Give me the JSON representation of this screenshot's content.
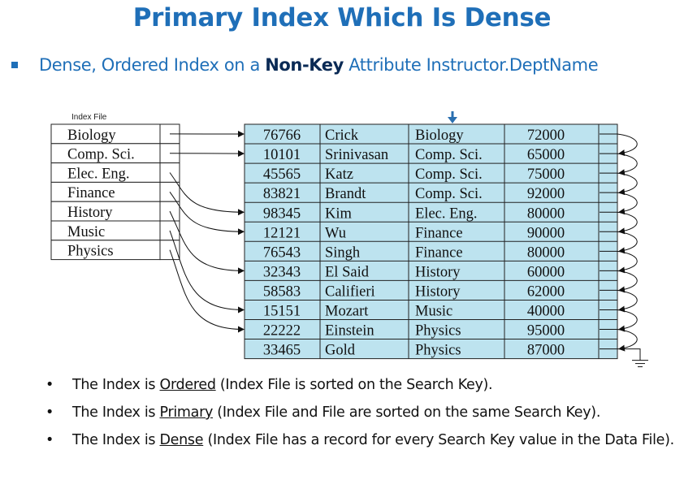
{
  "title": "Primary Index Which Is Dense",
  "subtitle": {
    "prefix": "Dense, Ordered Index on a ",
    "emphasis": "Non-Key",
    "suffix": " Attribute Instructor.DeptName"
  },
  "index_file": {
    "caption": "Index File",
    "entries": [
      "Biology",
      "Comp. Sci.",
      "Elec. Eng.",
      "Finance",
      "History",
      "Music",
      "Physics"
    ]
  },
  "data_file": {
    "records": [
      {
        "id": "76766",
        "name": "Crick",
        "dept": "Biology",
        "salary": "72000"
      },
      {
        "id": "10101",
        "name": "Srinivasan",
        "dept": "Comp. Sci.",
        "salary": "65000"
      },
      {
        "id": "45565",
        "name": "Katz",
        "dept": "Comp. Sci.",
        "salary": "75000"
      },
      {
        "id": "83821",
        "name": "Brandt",
        "dept": "Comp. Sci.",
        "salary": "92000"
      },
      {
        "id": "98345",
        "name": "Kim",
        "dept": "Elec. Eng.",
        "salary": "80000"
      },
      {
        "id": "12121",
        "name": "Wu",
        "dept": "Finance",
        "salary": "90000"
      },
      {
        "id": "76543",
        "name": "Singh",
        "dept": "Finance",
        "salary": "80000"
      },
      {
        "id": "32343",
        "name": "El Said",
        "dept": "History",
        "salary": "60000"
      },
      {
        "id": "58583",
        "name": "Califieri",
        "dept": "History",
        "salary": "62000"
      },
      {
        "id": "15151",
        "name": "Mozart",
        "dept": "Music",
        "salary": "40000"
      },
      {
        "id": "22222",
        "name": "Einstein",
        "dept": "Physics",
        "salary": "95000"
      },
      {
        "id": "33465",
        "name": "Gold",
        "dept": "Physics",
        "salary": "87000"
      }
    ],
    "index_pointers": [
      0,
      1,
      4,
      5,
      7,
      9,
      10
    ]
  },
  "bullets": [
    {
      "pre": "The Index is ",
      "term": "Ordered",
      "post": " (Index File is sorted on the Search Key)."
    },
    {
      "pre": "The Index is ",
      "term": "Primary",
      "post": " (Index File and File are sorted on the same Search Key)."
    },
    {
      "pre": "The Index is ",
      "term": "Dense",
      "post": " (Index File has a record for every Search Key value in the Data File)."
    }
  ],
  "colors": {
    "title": "#1f6fb8",
    "table_fill": "#bde3ef",
    "key_marker": "#2a6fb0"
  }
}
